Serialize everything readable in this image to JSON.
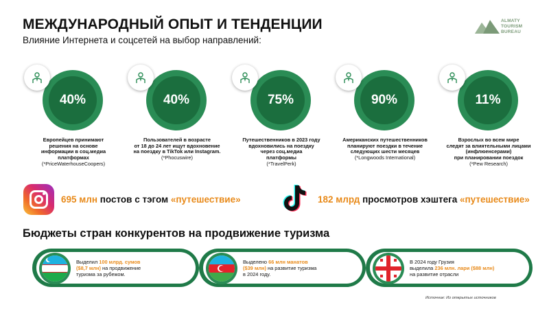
{
  "header": {
    "title": "МЕЖДУНАРОДНЫЙ ОПЫТ И ТЕНДЕНЦИИ",
    "subtitle": "Влияние Интернета и соцсетей на выбор направлений:",
    "logo": {
      "line1": "ALMATY",
      "line2": "TOURISM",
      "line3": "BUREAU",
      "icon": "mountain-logo-icon"
    }
  },
  "stats": [
    {
      "value": "40%",
      "lines": [
        "Европейцев принимают",
        "решения на основе",
        "информации в соц.медиа",
        "платформах"
      ],
      "source": "(*PriceWaterhouseCoopers)",
      "icon": "person-icon"
    },
    {
      "value": "40%",
      "lines": [
        "Пользователей в возрасте",
        "от 18 до 24 лет ищут вдохновение",
        "на поездку в TikTok или Instagram."
      ],
      "source": "(*Phocuswire)",
      "icon": "person-icon"
    },
    {
      "value": "75%",
      "lines": [
        "Путешественников в 2023 году",
        "вдохновились на поездку",
        "через соц.медиа",
        "платформы"
      ],
      "source": "(*TravelPerk)",
      "icon": "person-icon"
    },
    {
      "value": "90%",
      "lines": [
        "Американских путешественников",
        "планируют поездки в течение",
        "следующих шести месяцев"
      ],
      "source": "(*Longwoods International)",
      "icon": "person-icon"
    },
    {
      "value": "11%",
      "lines": [
        "Взрослых во всем мире",
        "следят за влиятельными лицами",
        "(инфлюенсерами)",
        "при планировании поездок"
      ],
      "source": "(*Pew Research)",
      "icon": "person-icon"
    }
  ],
  "social": [
    {
      "count": "695 млн",
      "text": "постов с тэгом",
      "tag": "«путешествие»",
      "icon": "instagram-icon"
    },
    {
      "count": "182 млрд",
      "text": "просмотров хэштега",
      "tag": "«путешествие»",
      "icon": "tiktok-icon"
    }
  ],
  "budgets_title": "Бюджеты стран конкурентов на продвижение туризма",
  "budgets": [
    {
      "icon": "uzbekistan-flag-icon",
      "l1a": "Выделил ",
      "l1b": "100 млрд. сумов",
      "l2a": "($8,7 млн)",
      "l2b": " на продвижение",
      "l3": "туризма за рубежом."
    },
    {
      "icon": "azerbaijan-flag-icon",
      "l1a": "Выделено ",
      "l1b": "66 млн манатов",
      "l2a": "($39 млн)",
      "l2b": " на развитие туризма",
      "l3": "в 2024 году."
    },
    {
      "icon": "georgia-flag-icon",
      "l1a": "В 2024 году Грузия",
      "l1b": "",
      "l2a": "выделила ",
      "l2b": "236 млн. лари ($88 млн)",
      "l3": "на развитие отрасли"
    }
  ],
  "source_note": "Источник: Из открытых источников",
  "colors": {
    "green": "#1f7a48",
    "green_light": "#2a8c55",
    "orange": "#e88a1a"
  }
}
